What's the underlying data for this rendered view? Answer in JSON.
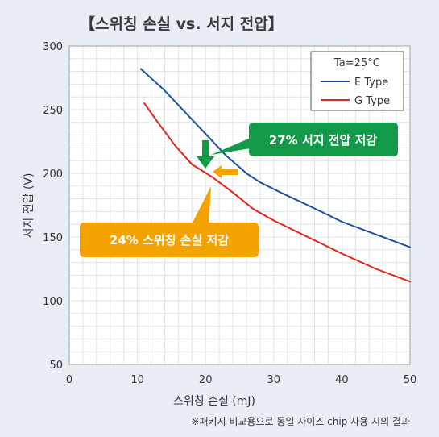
{
  "chart_data": {
    "type": "line",
    "title": "【스위칭 손실 vs. 서지 전압】",
    "xlabel": "스위칭 손실 (mJ)",
    "ylabel": "서지 전압 (V)",
    "xlim": [
      0,
      50
    ],
    "ylim": [
      50,
      300
    ],
    "x_ticks": [
      0,
      10,
      20,
      30,
      40,
      50
    ],
    "y_ticks": [
      50,
      100,
      150,
      200,
      250,
      300
    ],
    "grid": true,
    "legend_placement": "top-right",
    "legend_header": "Ta=25°C",
    "series": [
      {
        "name": "E Type",
        "color": "#1f4fa0",
        "x": [
          10.5,
          14,
          17,
          20,
          23,
          26,
          28,
          31,
          35,
          40,
          45,
          50
        ],
        "y": [
          282,
          265,
          248,
          231,
          214,
          200,
          193,
          185,
          175,
          162,
          152,
          142
        ]
      },
      {
        "name": "G Type",
        "color": "#e2231a",
        "x": [
          11,
          13,
          15.5,
          18,
          21,
          24,
          27,
          30,
          35,
          40,
          45,
          50
        ],
        "y": [
          255,
          240,
          222,
          207,
          197,
          185,
          172,
          163,
          150,
          137,
          125,
          115
        ]
      }
    ],
    "annotations": [
      {
        "text": "27% 서지 전압 저감",
        "color": "#129a48"
      },
      {
        "text": "24% 스위칭 손실 저감",
        "color": "#f3a200"
      }
    ]
  },
  "footnote": "※패키지 비교용으로 동일 사이즈 chip 사용 시의 결과"
}
